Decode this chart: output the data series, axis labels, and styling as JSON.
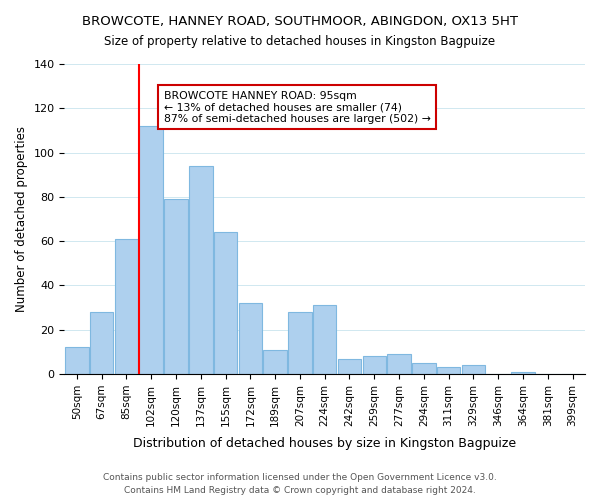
{
  "title1": "BROWCOTE, HANNEY ROAD, SOUTHMOOR, ABINGDON, OX13 5HT",
  "title2": "Size of property relative to detached houses in Kingston Bagpuize",
  "xlabel": "Distribution of detached houses by size in Kingston Bagpuize",
  "ylabel": "Number of detached properties",
  "bar_labels": [
    "50sqm",
    "67sqm",
    "85sqm",
    "102sqm",
    "120sqm",
    "137sqm",
    "155sqm",
    "172sqm",
    "189sqm",
    "207sqm",
    "224sqm",
    "242sqm",
    "259sqm",
    "277sqm",
    "294sqm",
    "311sqm",
    "329sqm",
    "346sqm",
    "364sqm",
    "381sqm",
    "399sqm"
  ],
  "bar_values": [
    12,
    28,
    61,
    112,
    79,
    94,
    64,
    32,
    11,
    28,
    31,
    7,
    8,
    9,
    5,
    3,
    4,
    0,
    1,
    0,
    0
  ],
  "bar_color": "#aed0ee",
  "bar_edge_color": "#7fb8e0",
  "property_line_x": 2,
  "property_value": 95,
  "annotation_title": "BROWCOTE HANNEY ROAD: 95sqm",
  "annotation_line1": "← 13% of detached houses are smaller (74)",
  "annotation_line2": "87% of semi-detached houses are larger (502) →",
  "annotation_box_color": "#ffffff",
  "annotation_box_edge": "#cc0000",
  "ylim": [
    0,
    140
  ],
  "footer1": "Contains HM Land Registry data © Crown copyright and database right 2024.",
  "footer2": "Contains public sector information licensed under the Open Government Licence v3.0."
}
